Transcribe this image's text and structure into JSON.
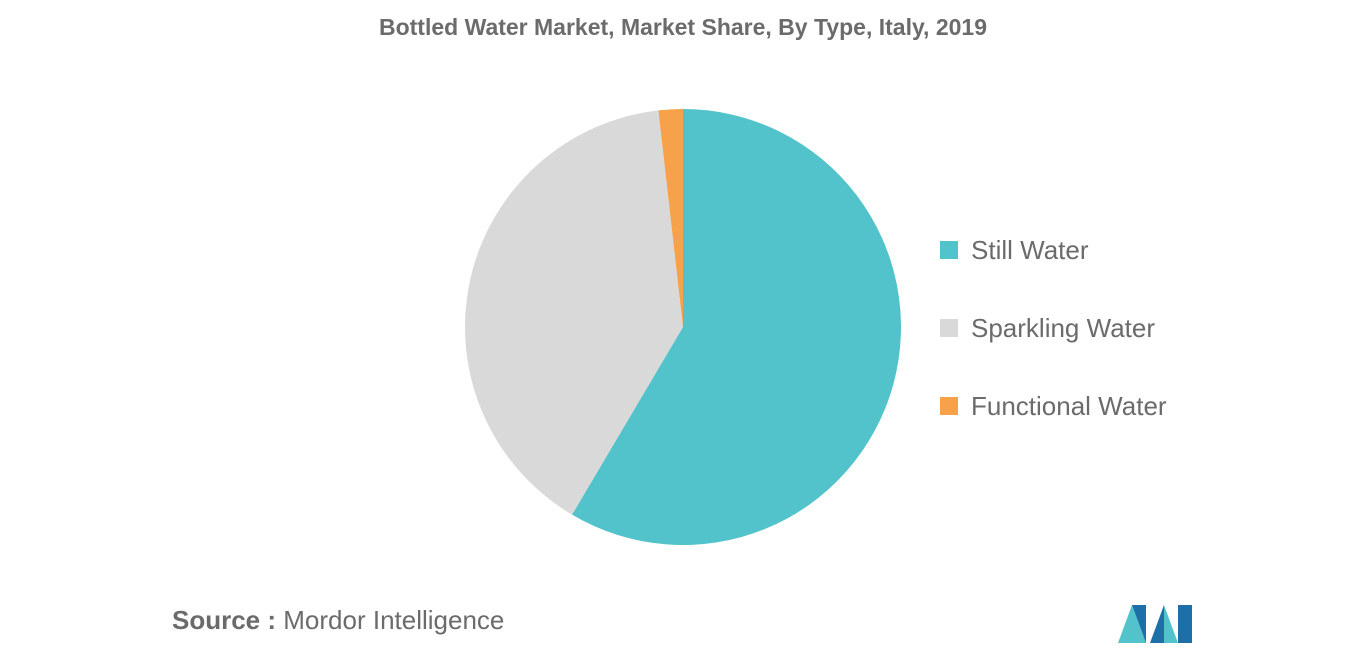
{
  "chart_data": {
    "type": "pie",
    "title": "Bottled Water Market, Market Share, By Type, Italy, 2019",
    "categories": [
      "Still Water",
      "Sparkling Water",
      "Functional Water"
    ],
    "values": [
      58.5,
      39.7,
      1.8
    ],
    "colors": [
      "#52c3ca",
      "#d9d9d9",
      "#f7a14b"
    ],
    "legend_position": "right",
    "start_angle_degrees": 0,
    "direction": "clockwise"
  },
  "source": {
    "prefix": "Source :",
    "text": "Mordor Intelligence"
  },
  "logo": {
    "icon": "mordor-intelligence-logo-icon",
    "colors": [
      "#1d6fa8",
      "#52c3ca"
    ]
  }
}
